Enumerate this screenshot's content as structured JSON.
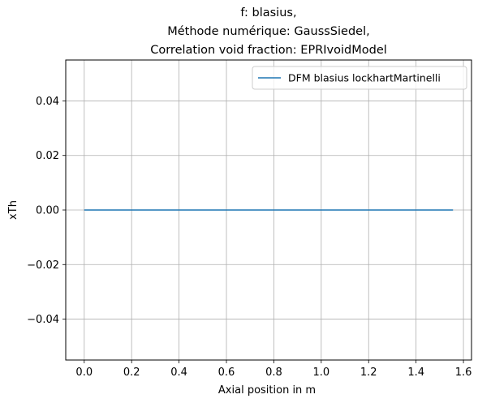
{
  "chart_data": {
    "type": "line",
    "title_lines": [
      "f: blasius,",
      "Méthode numérique: GaussSiedel,",
      "Correlation void fraction: EPRIvoidModel"
    ],
    "xlabel": "Axial position in m",
    "ylabel": "xTh",
    "xlim": [
      -0.078,
      1.634
    ],
    "ylim": [
      -0.055,
      0.055
    ],
    "x_ticks": [
      0.0,
      0.2,
      0.4,
      0.6,
      0.8,
      1.0,
      1.2,
      1.4,
      1.6
    ],
    "x_tick_labels": [
      "0.0",
      "0.2",
      "0.4",
      "0.6",
      "0.8",
      "1.0",
      "1.2",
      "1.4",
      "1.6"
    ],
    "y_ticks": [
      0.04,
      0.02,
      0.0,
      -0.02,
      -0.04
    ],
    "y_tick_labels": [
      "0.04",
      "0.02",
      "0.00",
      "−0.02",
      "−0.04"
    ],
    "grid": true,
    "legend_position": "top-right",
    "series": [
      {
        "name": "DFM blasius lockhartMartinelli",
        "color": "#1f77b4",
        "x": [
          0.0,
          1.556
        ],
        "y": [
          0.0,
          0.0
        ]
      }
    ]
  }
}
